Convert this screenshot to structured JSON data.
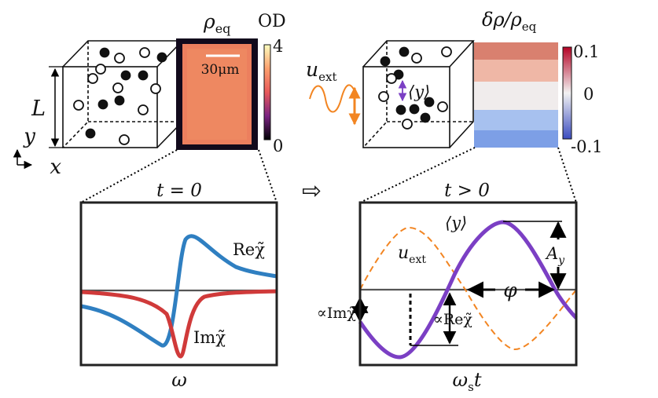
{
  "left_top": {
    "axis_L": "L",
    "axis_y": "y",
    "axis_x": "x",
    "image_title": "ρ",
    "image_title_sub": "eq",
    "colorbar_label": "OD",
    "colorbar_ticks": [
      "4",
      "0"
    ],
    "scale_bar": "30μm",
    "colors": {
      "cbar_top": "#fcfdbf",
      "cbar_mid": "#e8595a",
      "cbar_bottom": "#000004",
      "img_fill": "#ec7f5e"
    }
  },
  "right_top": {
    "drive_label": "u",
    "drive_label_sub": "ext",
    "mean_label": "⟨y⟩",
    "image_title": "δρ/ρ",
    "image_title_sub": "eq",
    "colorbar_ticks": [
      "0.1",
      "0",
      "-0.1"
    ],
    "colors": {
      "cbar_top": "#b40426",
      "cbar_mid": "#f2f2f2",
      "cbar_bottom": "#3b4cc0",
      "drive": "#f28522",
      "mean": "#7b3fc4"
    }
  },
  "arrow_symbol": "⇨",
  "left_plot": {
    "title": "t = 0",
    "xlabel": "ω",
    "re_label": "Reχ̃",
    "im_label": "Imχ̃",
    "colors": {
      "re": "#2f7fc1",
      "im": "#d03a3a"
    }
  },
  "right_plot": {
    "title": "t > 0",
    "xlabel": "ω",
    "xlabel_sub": "s",
    "xlabel_tail": "t",
    "mean_label": "⟨y⟩",
    "drive_label": "u",
    "drive_label_sub": "ext",
    "amp_label": "A",
    "amp_label_sub": "y",
    "phase_label": "φ",
    "im_prop_label": "∝Imχ̃",
    "re_prop_label": "∝Reχ̃",
    "colors": {
      "mean": "#7b3fc4",
      "drive": "#f28522",
      "im": "#d03a3a",
      "re": "#5b8fd0"
    }
  }
}
